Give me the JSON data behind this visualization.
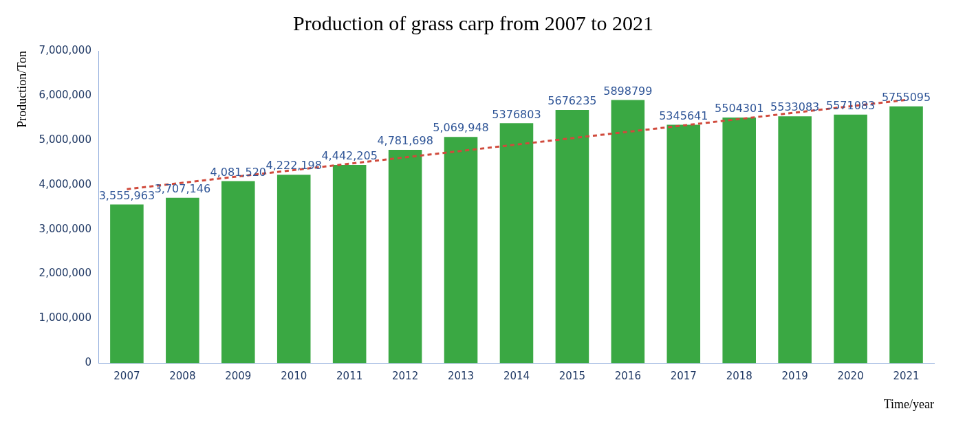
{
  "chart_data": {
    "type": "bar",
    "title": "Production of grass carp from 2007 to 2021",
    "xlabel": "Time/year",
    "ylabel": "Production/Ton",
    "categories": [
      "2007",
      "2008",
      "2009",
      "2010",
      "2011",
      "2012",
      "2013",
      "2014",
      "2015",
      "2016",
      "2017",
      "2018",
      "2019",
      "2020",
      "2021"
    ],
    "series": [
      {
        "color": "#3aa843",
        "values": [
          3555963,
          3707146,
          4081520,
          4222198,
          4442205,
          4781698,
          5069948,
          5376803,
          5676235,
          5898799,
          5345641,
          5504301,
          5533083,
          5571083,
          5755095
        ],
        "value_labels": [
          "3,555,963",
          "3,707,146",
          "4,081,520",
          "4,222,198",
          "4,442,205",
          "4,781,698",
          "5,069,948",
          "5376803",
          "5676235",
          "5898799",
          "5345641",
          "5504301",
          "5533083",
          "5571083",
          "5755095"
        ]
      },
      {
        "type": "line",
        "color": "#d04a3c",
        "line_style": "dashed",
        "marker": "none",
        "values": [
          3900000,
          null,
          null,
          null,
          null,
          null,
          null,
          null,
          null,
          null,
          null,
          null,
          null,
          null,
          5900000
        ]
      }
    ],
    "ylim": [
      0,
      7000000
    ],
    "yticks": [
      {
        "value": 0,
        "label": "0"
      },
      {
        "value": 1000000,
        "label": "1,000,000"
      },
      {
        "value": 2000000,
        "label": "2,000,000"
      },
      {
        "value": 3000000,
        "label": "3,000,000"
      },
      {
        "value": 4000000,
        "label": "4,000,000"
      },
      {
        "value": 5000000,
        "label": "5,000,000"
      },
      {
        "value": 6000000,
        "label": "6,000,000"
      },
      {
        "value": 7000000,
        "label": "7,000,000"
      }
    ],
    "grid": false,
    "legend": false
  }
}
